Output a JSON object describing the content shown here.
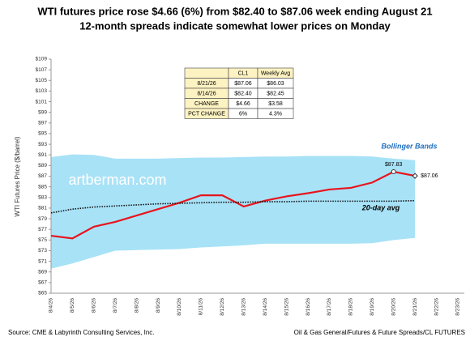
{
  "chart_data": {
    "type": "line",
    "title": "WTI futures price rose $4.66 (6%) from $82.40 to $87.06 week ending August 21",
    "subtitle": "12-month spreads indicate somewhat lower prices on Monday",
    "y_label": "WTI  Futures Price ($/barrel)",
    "watermark": "artberman.com",
    "source_left": "Source: CME & Labyrinth Consulting Services, Inc.",
    "source_right": "Oil & Gas General/Futures & Future Spreads/CL FUTURES",
    "categories": [
      "8/4/26",
      "8/5/26",
      "8/6/26",
      "8/7/26",
      "8/8/26",
      "8/9/26",
      "8/10/26",
      "8/11/26",
      "8/12/26",
      "8/13/26",
      "8/14/26",
      "8/15/26",
      "8/16/26",
      "8/17/26",
      "8/18/26",
      "8/19/26",
      "8/20/26",
      "8/21/26",
      "8/22/26",
      "8/23/26"
    ],
    "ylim": [
      65,
      109
    ],
    "yticks": [
      {
        "value": 65,
        "label": "$65"
      },
      {
        "value": 67,
        "label": "$67"
      },
      {
        "value": 69,
        "label": "$69"
      },
      {
        "value": 71,
        "label": "$71"
      },
      {
        "value": 73,
        "label": "$73"
      },
      {
        "value": 75,
        "label": "$75"
      },
      {
        "value": 77,
        "label": "$77"
      },
      {
        "value": 79,
        "label": "$79"
      },
      {
        "value": 81,
        "label": "$81"
      },
      {
        "value": 83,
        "label": "$83"
      },
      {
        "value": 85,
        "label": "$85"
      },
      {
        "value": 87,
        "label": "$87"
      },
      {
        "value": 89,
        "label": "$89"
      },
      {
        "value": 91,
        "label": "$91"
      },
      {
        "value": 93,
        "label": "$93"
      },
      {
        "value": 95,
        "label": "$95"
      },
      {
        "value": 97,
        "label": "$97"
      },
      {
        "value": 99,
        "label": "$99"
      },
      {
        "value": 101,
        "label": "$101"
      },
      {
        "value": 103,
        "label": "$103"
      },
      {
        "value": 105,
        "label": "$105"
      },
      {
        "value": 107,
        "label": "$107"
      },
      {
        "value": 109,
        "label": "$109"
      }
    ],
    "grid": false,
    "band": {
      "name": "Bollinger Bands",
      "color": "#a8e2f7",
      "label_color": "#1f6fc0",
      "upper": [
        90.6,
        91.1,
        91.0,
        90.3,
        90.3,
        90.3,
        90.4,
        90.5,
        90.5,
        90.6,
        90.7,
        90.7,
        90.8,
        90.8,
        90.8,
        90.7,
        90.3,
        90.0,
        null,
        null
      ],
      "lower": [
        69.6,
        70.6,
        71.8,
        73.0,
        73.1,
        73.2,
        73.3,
        73.6,
        73.8,
        74.0,
        74.3,
        74.3,
        74.3,
        74.3,
        74.3,
        74.4,
        75.0,
        75.4,
        null,
        null
      ]
    },
    "series": [
      {
        "color": "#e8141c",
        "style": "solid",
        "values": [
          75.8,
          75.3,
          77.5,
          78.4,
          79.6,
          80.8,
          82.0,
          83.4,
          83.4,
          81.3,
          82.4,
          83.2,
          83.8,
          84.5,
          84.8,
          85.8,
          87.83,
          87.06,
          null,
          null
        ],
        "value_labels": [
          null,
          null,
          null,
          null,
          null,
          null,
          null,
          null,
          null,
          null,
          null,
          null,
          null,
          null,
          null,
          null,
          "$87.83",
          "$87.06",
          null,
          null
        ]
      },
      {
        "name": "20-day avg",
        "color": "#111111",
        "style": "dotted",
        "values": [
          80.1,
          80.8,
          81.2,
          81.4,
          81.6,
          81.8,
          81.9,
          82.0,
          82.1,
          82.1,
          82.2,
          82.2,
          82.3,
          82.3,
          82.3,
          82.3,
          82.3,
          82.4,
          null,
          null
        ]
      }
    ]
  },
  "table": {
    "header": [
      "CL1",
      "Weekly Avg"
    ],
    "rows": [
      [
        "8/21/26",
        "$87.06",
        "$86.03"
      ],
      [
        "8/14/26",
        "$82.40",
        "$82.45"
      ],
      [
        "CHANGE",
        "$4.66",
        "$3.58"
      ],
      [
        "PCT CHANGE",
        "6%",
        "4.3%"
      ]
    ]
  }
}
